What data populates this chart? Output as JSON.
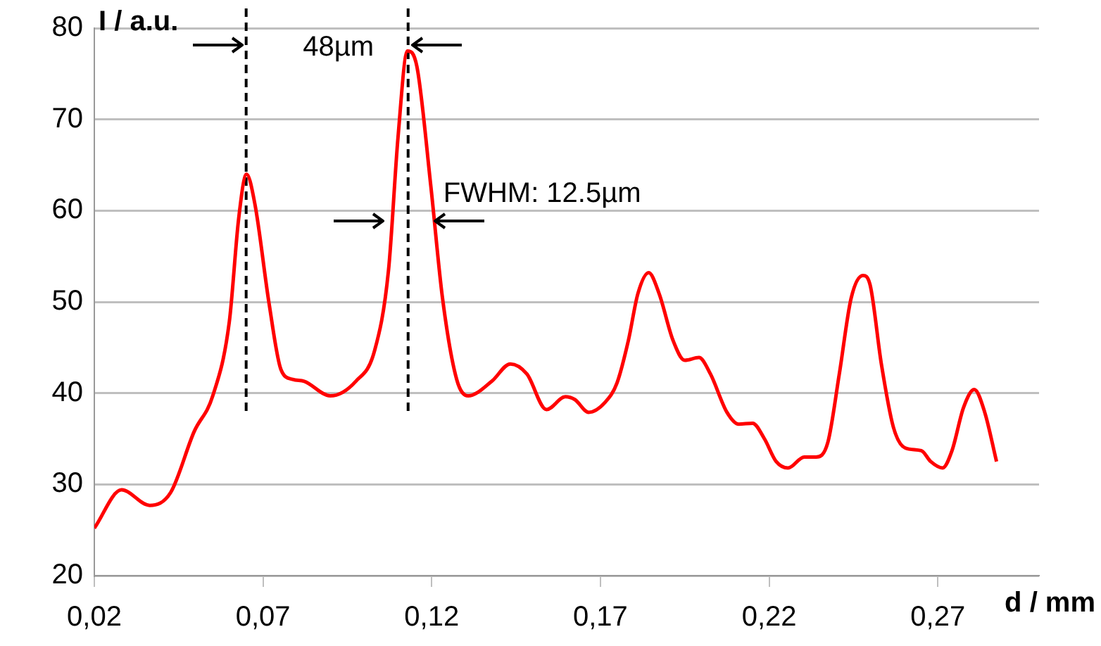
{
  "chart_data": {
    "type": "line",
    "xlabel": "d / mm",
    "ylabel": "I / a.u.",
    "x": [
      0.02,
      0.0281,
      0.0364,
      0.0426,
      0.0496,
      0.0551,
      0.06,
      0.0628,
      0.0651,
      0.0676,
      0.0718,
      0.0753,
      0.0788,
      0.0822,
      0.0899,
      0.0975,
      0.1031,
      0.1072,
      0.11,
      0.1128,
      0.1156,
      0.1197,
      0.1232,
      0.1274,
      0.1308,
      0.1378,
      0.1433,
      0.1482,
      0.154,
      0.1596,
      0.1624,
      0.1665,
      0.1714,
      0.1749,
      0.1783,
      0.1811,
      0.1843,
      0.1874,
      0.1915,
      0.195,
      0.1992,
      0.2026,
      0.2075,
      0.211,
      0.2151,
      0.2186,
      0.2221,
      0.2256,
      0.2304,
      0.2339,
      0.2374,
      0.2408,
      0.2443,
      0.2478,
      0.2499,
      0.2533,
      0.2568,
      0.2603,
      0.2651,
      0.2679,
      0.2714,
      0.2742,
      0.2776,
      0.2808,
      0.2839,
      0.2874
    ],
    "series": [
      {
        "color": "#ff0000",
        "values": [
          25.2,
          29.4,
          27.7,
          29.1,
          35.8,
          39.7,
          47.8,
          59.2,
          64.0,
          60.7,
          49.8,
          42.6,
          41.5,
          41.3,
          39.7,
          41.3,
          44.7,
          53.5,
          68.0,
          77.5,
          75.8,
          62.8,
          50.4,
          41.5,
          39.7,
          41.3,
          43.2,
          42.1,
          38.2,
          39.6,
          39.3,
          37.9,
          39.0,
          41.1,
          45.8,
          50.9,
          53.2,
          50.9,
          45.8,
          43.6,
          43.9,
          42.1,
          37.9,
          36.6,
          36.7,
          35.0,
          32.5,
          31.8,
          33.0,
          33.0,
          34.6,
          42.1,
          50.4,
          52.9,
          51.9,
          43.1,
          36.3,
          34.0,
          33.7,
          32.5,
          31.8,
          33.7,
          38.4,
          40.4,
          37.9,
          32.5
        ]
      }
    ],
    "xlim": [
      0.02,
      0.3
    ],
    "xticks": [
      {
        "value": 0.02,
        "label": "0,02"
      },
      {
        "value": 0.07,
        "label": "0,07"
      },
      {
        "value": 0.12,
        "label": "0,12"
      },
      {
        "value": 0.17,
        "label": "0,17"
      },
      {
        "value": 0.22,
        "label": "0,22"
      },
      {
        "value": 0.27,
        "label": "0,27"
      }
    ],
    "ylim": [
      20,
      80
    ],
    "yticks": [
      20,
      30,
      40,
      50,
      60,
      70,
      80
    ],
    "grid": "y",
    "marker": "none",
    "line_style": "solid",
    "legend": false,
    "ref_lines": [
      {
        "axis": "x",
        "value": 0.065,
        "color": "#000000",
        "line_style": "dashed"
      },
      {
        "axis": "x",
        "value": 0.113,
        "color": "#000000",
        "line_style": "dashed"
      }
    ],
    "annotations": [
      "48µm",
      "FWHM: 12.5µm"
    ]
  }
}
